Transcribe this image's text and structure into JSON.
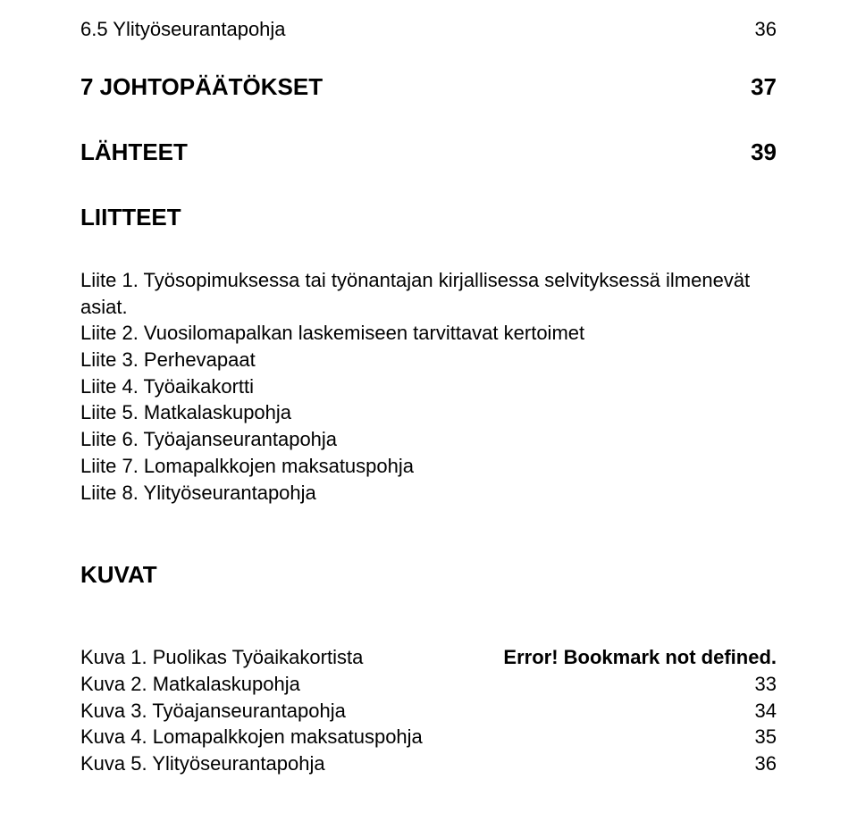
{
  "section65": {
    "label": "6.5 Ylityöseurantapohja",
    "page": "36"
  },
  "heading7": {
    "label": "7 JOHTOPÄÄTÖKSET",
    "page": "37"
  },
  "lahteet": {
    "label": "LÄHTEET",
    "page": "39"
  },
  "liitteet_heading": "LIITTEET",
  "liitteet": [
    "Liite 1. Työsopimuksessa tai työnantajan kirjallisessa selvityksessä ilmenevät asiat.",
    "Liite 2. Vuosilomapalkan laskemiseen tarvittavat kertoimet",
    "Liite 3. Perhevapaat",
    "Liite 4. Työaikakortti",
    "Liite 5. Matkalaskupohja",
    "Liite 6. Työajanseurantapohja",
    "Liite 7. Lomapalkkojen maksatuspohja",
    "Liite 8. Ylityöseurantapohja"
  ],
  "kuvat_heading": "KUVAT",
  "kuvat": [
    {
      "label": "Kuva 1. Puolikas Työaikakortista",
      "page": "Error! Bookmark not defined.",
      "bold_page": true
    },
    {
      "label": "Kuva 2. Matkalaskupohja",
      "page": "33",
      "bold_page": false
    },
    {
      "label": "Kuva 3. Työajanseurantapohja",
      "page": "34",
      "bold_page": false
    },
    {
      "label": "Kuva 4. Lomapalkkojen maksatuspohja",
      "page": "35",
      "bold_page": false
    },
    {
      "label": "Kuva 5. Ylityöseurantapohja",
      "page": "36",
      "bold_page": false
    }
  ],
  "colors": {
    "text": "#000000",
    "background": "#ffffff"
  },
  "fontsizes": {
    "body": 22,
    "heading": 26
  }
}
